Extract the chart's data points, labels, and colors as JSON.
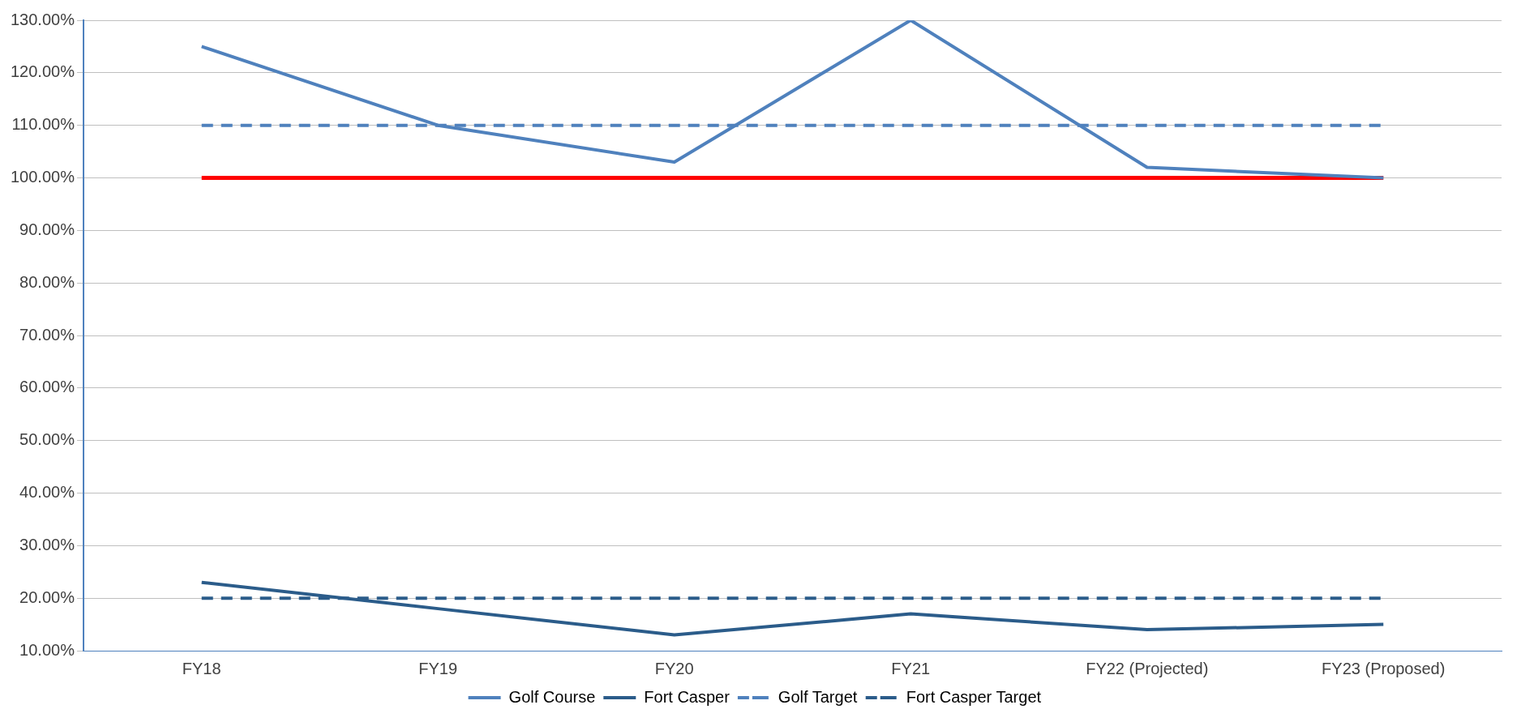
{
  "chart_data": {
    "type": "line",
    "categories": [
      "FY18",
      "FY19",
      "FY20",
      "FY21",
      "FY22 (Projected)",
      "FY23 (Proposed)"
    ],
    "series": [
      {
        "name": "Golf Course",
        "color": "#4f81bd",
        "values": [
          125,
          110,
          103,
          130,
          102,
          100
        ],
        "line_style": "solid"
      },
      {
        "name": "Fort Casper",
        "color": "#2b5c8a",
        "values": [
          23,
          18,
          13,
          17,
          14,
          15
        ],
        "line_style": "solid"
      },
      {
        "name": "Golf Target",
        "color": "#4f81bd",
        "values": [
          110,
          110,
          110,
          110,
          110,
          110
        ],
        "line_style": "dashed"
      },
      {
        "name": "Fort Casper Target",
        "color": "#2b5c8a",
        "values": [
          20,
          20,
          20,
          20,
          20,
          20
        ],
        "line_style": "dashed"
      },
      {
        "color": "#ff0000",
        "values": [
          100,
          100,
          100,
          100,
          100,
          100
        ],
        "line_style": "solid"
      }
    ],
    "ylim": [
      10,
      130
    ],
    "yticks": [
      {
        "value": 10,
        "label": "10.00%"
      },
      {
        "value": 20,
        "label": "20.00%"
      },
      {
        "value": 30,
        "label": "30.00%"
      },
      {
        "value": 40,
        "label": "40.00%"
      },
      {
        "value": 50,
        "label": "50.00%"
      },
      {
        "value": 60,
        "label": "60.00%"
      },
      {
        "value": 70,
        "label": "70.00%"
      },
      {
        "value": 80,
        "label": "80.00%"
      },
      {
        "value": 90,
        "label": "90.00%"
      },
      {
        "value": 100,
        "label": "100.00%"
      },
      {
        "value": 110,
        "label": "110.00%"
      },
      {
        "value": 120,
        "label": "120.00%"
      },
      {
        "value": 130,
        "label": "130.00%"
      }
    ],
    "grid": "y",
    "legend": "bottom",
    "marker": "none"
  }
}
